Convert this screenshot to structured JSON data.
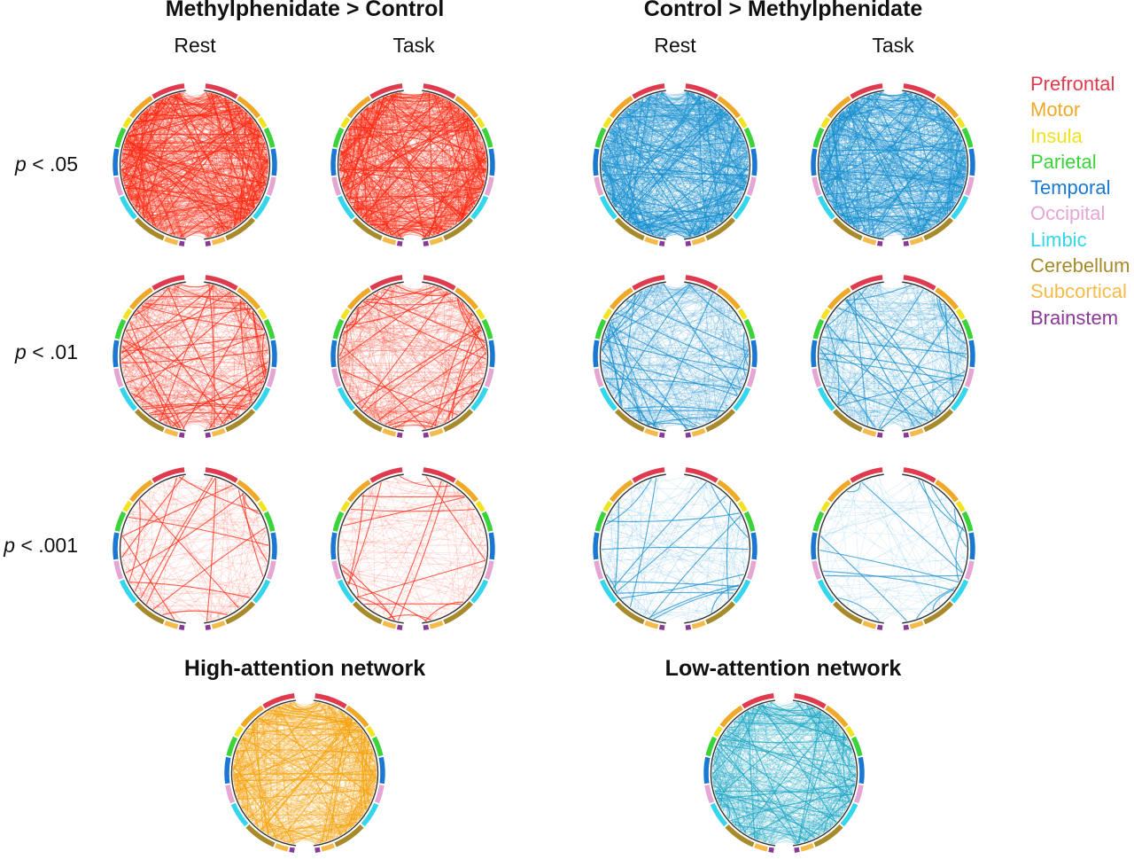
{
  "groups": [
    {
      "id": "mph_gt_ctrl",
      "title": "Methylphenidate > Control",
      "color": "#ff2a14",
      "columns": [
        "Rest",
        "Task"
      ]
    },
    {
      "id": "ctrl_gt_mph",
      "title": "Control > Methylphenidate",
      "color": "#168fcf",
      "columns": [
        "Rest",
        "Task"
      ]
    }
  ],
  "rows": [
    {
      "prefix": "p",
      "rest": " < .05"
    },
    {
      "prefix": "p",
      "rest": " < .01"
    },
    {
      "prefix": "p",
      "rest": " < .001"
    }
  ],
  "bottom": [
    {
      "id": "high_attention",
      "title": "High-attention network",
      "color": "#f5a30d"
    },
    {
      "id": "low_attention",
      "title": "Low-attention network",
      "color": "#19a6c4"
    }
  ],
  "legend": [
    {
      "label": "Prefrontal",
      "color": "#e03a4e"
    },
    {
      "label": "Motor",
      "color": "#f0a827"
    },
    {
      "label": "Insula",
      "color": "#f1e320"
    },
    {
      "label": "Parietal",
      "color": "#3ad33a"
    },
    {
      "label": "Temporal",
      "color": "#1a78d2"
    },
    {
      "label": "Occipital",
      "color": "#e6a6d4"
    },
    {
      "label": "Limbic",
      "color": "#33d6ec"
    },
    {
      "label": "Cerebellum",
      "color": "#a78a2a"
    },
    {
      "label": "Subcortical",
      "color": "#f5bb4a"
    },
    {
      "label": "Brainstem",
      "color": "#8a3a96"
    }
  ],
  "regions_per_hemisphere": [
    "Prefrontal",
    "Motor",
    "Insula",
    "Parietal",
    "Temporal",
    "Occipital",
    "Limbic",
    "Cerebellum",
    "Subcortical",
    "Brainstem"
  ],
  "circles": [
    {
      "group": "mph_gt_ctrl",
      "condition": "Rest",
      "threshold": ".05",
      "density": 1.0,
      "strong_share": 0.5
    },
    {
      "group": "mph_gt_ctrl",
      "condition": "Task",
      "threshold": ".05",
      "density": 1.0,
      "strong_share": 0.5
    },
    {
      "group": "ctrl_gt_mph",
      "condition": "Rest",
      "threshold": ".05",
      "density": 1.0,
      "strong_share": 0.4
    },
    {
      "group": "ctrl_gt_mph",
      "condition": "Task",
      "threshold": ".05",
      "density": 1.0,
      "strong_share": 0.4
    },
    {
      "group": "mph_gt_ctrl",
      "condition": "Rest",
      "threshold": ".01",
      "density": 0.55,
      "strong_share": 0.45
    },
    {
      "group": "mph_gt_ctrl",
      "condition": "Task",
      "threshold": ".01",
      "density": 0.5,
      "strong_share": 0.35
    },
    {
      "group": "ctrl_gt_mph",
      "condition": "Rest",
      "threshold": ".01",
      "density": 0.5,
      "strong_share": 0.4
    },
    {
      "group": "ctrl_gt_mph",
      "condition": "Task",
      "threshold": ".01",
      "density": 0.45,
      "strong_share": 0.25
    },
    {
      "group": "mph_gt_ctrl",
      "condition": "Rest",
      "threshold": ".001",
      "density": 0.22,
      "strong_share": 0.3
    },
    {
      "group": "mph_gt_ctrl",
      "condition": "Task",
      "threshold": ".001",
      "density": 0.2,
      "strong_share": 0.3
    },
    {
      "group": "ctrl_gt_mph",
      "condition": "Rest",
      "threshold": ".001",
      "density": 0.2,
      "strong_share": 0.3
    },
    {
      "group": "ctrl_gt_mph",
      "condition": "Task",
      "threshold": ".001",
      "density": 0.12,
      "strong_share": 0.25
    },
    {
      "group": "high_attention",
      "condition": "",
      "threshold": "",
      "density": 0.9,
      "strong_share": 0.4
    },
    {
      "group": "low_attention",
      "condition": "",
      "threshold": "",
      "density": 0.75,
      "strong_share": 0.35
    }
  ]
}
